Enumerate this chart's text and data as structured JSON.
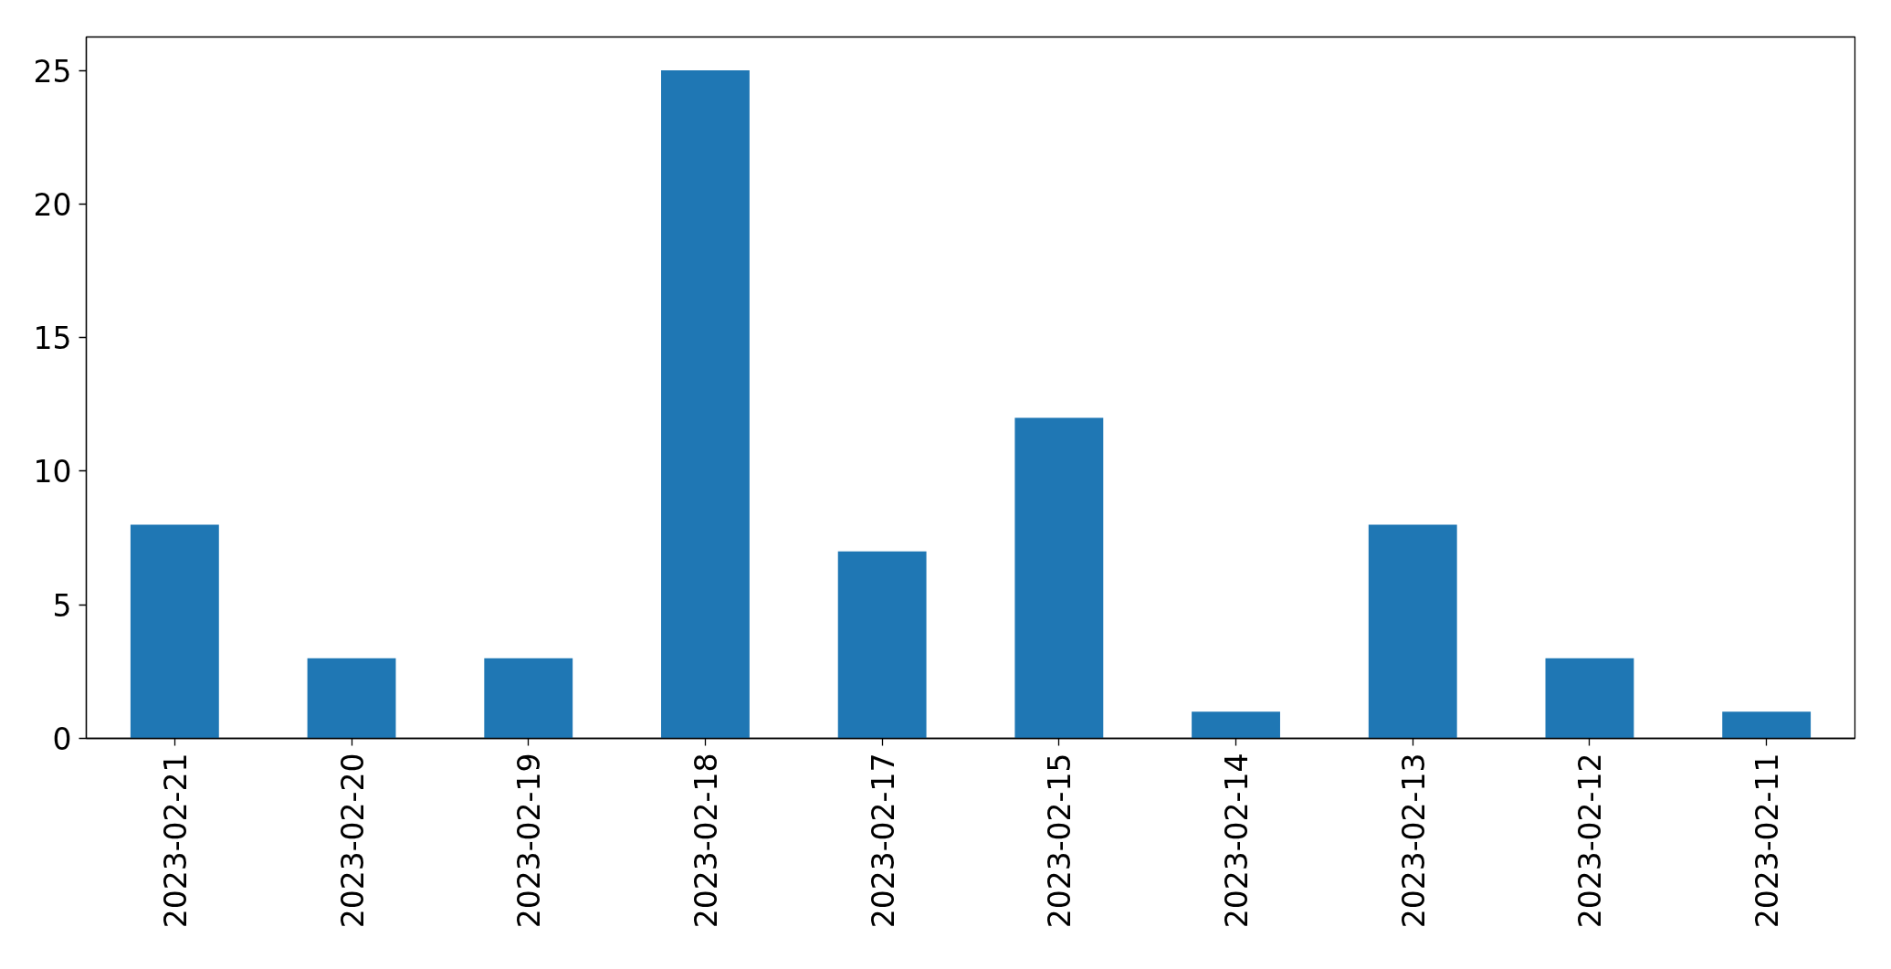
{
  "chart_data": {
    "type": "bar",
    "categories": [
      "2023-02-21",
      "2023-02-20",
      "2023-02-19",
      "2023-02-18",
      "2023-02-17",
      "2023-02-15",
      "2023-02-14",
      "2023-02-13",
      "2023-02-12",
      "2023-02-11"
    ],
    "values": [
      8,
      3,
      3,
      25,
      7,
      12,
      1,
      8,
      3,
      1
    ],
    "color": "#1f77b4",
    "ylim": [
      0,
      26.25
    ],
    "yticks": [
      0,
      5,
      10,
      15,
      20,
      25
    ]
  }
}
